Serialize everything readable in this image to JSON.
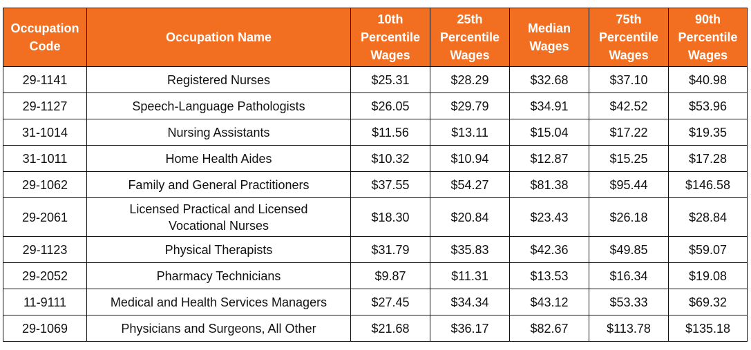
{
  "table": {
    "headers": [
      [
        "Occupation",
        "Code"
      ],
      [
        "Occupation Name"
      ],
      [
        "10th",
        "Percentile",
        "Wages"
      ],
      [
        "25th",
        "Percentile",
        "Wages"
      ],
      [
        "Median",
        "Wages"
      ],
      [
        "75th",
        "Percentile",
        "Wages"
      ],
      [
        "90th",
        "Percentile",
        "Wages"
      ]
    ],
    "rows": [
      {
        "code": "29-1141",
        "name": [
          "Registered Nurses"
        ],
        "p10": "$25.31",
        "p25": "$28.29",
        "median": "$32.68",
        "p75": "$37.10",
        "p90": "$40.98"
      },
      {
        "code": "29-1127",
        "name": [
          "Speech-Language Pathologists"
        ],
        "p10": "$26.05",
        "p25": "$29.79",
        "median": "$34.91",
        "p75": "$42.52",
        "p90": "$53.96"
      },
      {
        "code": "31-1014",
        "name": [
          "Nursing Assistants"
        ],
        "p10": "$11.56",
        "p25": "$13.11",
        "median": "$15.04",
        "p75": "$17.22",
        "p90": "$19.35"
      },
      {
        "code": "31-1011",
        "name": [
          "Home Health Aides"
        ],
        "p10": "$10.32",
        "p25": "$10.94",
        "median": "$12.87",
        "p75": "$15.25",
        "p90": "$17.28"
      },
      {
        "code": "29-1062",
        "name": [
          "Family and General Practitioners"
        ],
        "p10": "$37.55",
        "p25": "$54.27",
        "median": "$81.38",
        "p75": "$95.44",
        "p90": "$146.58"
      },
      {
        "code": "29-2061",
        "name": [
          "Licensed Practical and Licensed",
          "Vocational Nurses"
        ],
        "p10": "$18.30",
        "p25": "$20.84",
        "median": "$23.43",
        "p75": "$26.18",
        "p90": "$28.84"
      },
      {
        "code": "29-1123",
        "name": [
          "Physical Therapists"
        ],
        "p10": "$31.79",
        "p25": "$35.83",
        "median": "$42.36",
        "p75": "$49.85",
        "p90": "$59.07"
      },
      {
        "code": "29-2052",
        "name": [
          "Pharmacy Technicians"
        ],
        "p10": "$9.87",
        "p25": "$11.31",
        "median": "$13.53",
        "p75": "$16.34",
        "p90": "$19.08"
      },
      {
        "code": "11-9111",
        "name": [
          "Medical and Health Services Managers"
        ],
        "p10": "$27.45",
        "p25": "$34.34",
        "median": "$43.12",
        "p75": "$53.33",
        "p90": "$69.32"
      },
      {
        "code": "29-1069",
        "name": [
          "Physicians and Surgeons, All Other"
        ],
        "p10": "$21.68",
        "p25": "$36.17",
        "median": "$82.67",
        "p75": "$113.78",
        "p90": "$135.18"
      }
    ]
  },
  "colors": {
    "header_bg": "#f26f21",
    "header_text": "#ffffff",
    "border": "#111111",
    "body_text": "#111111"
  }
}
